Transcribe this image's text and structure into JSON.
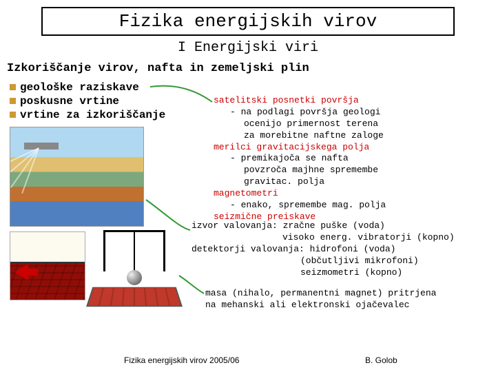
{
  "title": "Fizika energijskih virov",
  "subtitle": "I Energijski viri",
  "section_heading": "Izkoriščanje virov, nafta in zemeljski plin",
  "bullets": [
    "geološke raziskave",
    "poskusne vrtine",
    "vrtine za izkoriščanje"
  ],
  "block1": {
    "l1": "satelitski posnetki površja",
    "l2": "- na podlagi površja geologi",
    "l3": "ocenijo primernost terena",
    "l4": "za morebitne naftne zaloge",
    "l5": "merilci gravitacijskega polja",
    "l6": "- premikajoča se nafta",
    "l7": "povzroča majhne spremembe",
    "l8": "gravitac. polja",
    "l9": "magnetometri",
    "l10": "- enako, spremembe mag. polja",
    "l11": "seizmične preiskave"
  },
  "block2": {
    "l1": "izvor valovanja: zračne puške (voda)",
    "l2": "visoko energ. vibratorji (kopno)",
    "l3": "detektorji valovanja: hidrofoni (voda)",
    "l4": "(občutljivi mikrofoni)",
    "l5": "seizmometri (kopno)"
  },
  "block3": {
    "l1": "masa (nihalo, permanentni magnet) pritrjena",
    "l2": "na mehanski ali elektronski ojačevalec"
  },
  "footer": {
    "left": "Fizika energijskih virov 2005/06",
    "right": "B. Golob"
  },
  "connectors": {
    "stroke": "#339933",
    "width": 2,
    "paths": [
      "M 218,126 C 260,120 290,135 308,148",
      "M 212,290 C 240,310 260,330 276,334",
      "M 260,400 C 275,410 285,420 296,426"
    ]
  }
}
